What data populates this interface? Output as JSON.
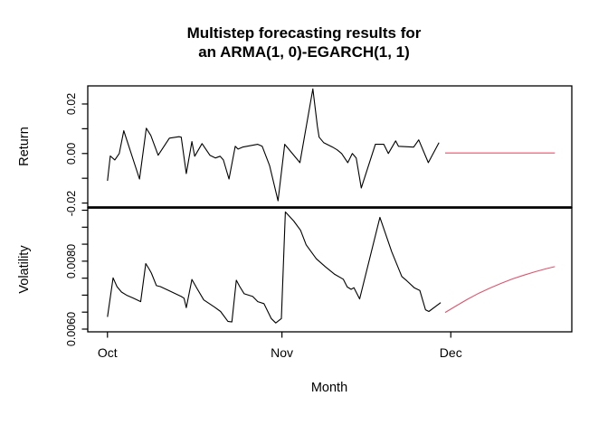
{
  "title": {
    "line1": "Multistep forecasting results for",
    "line2": "an ARMA(1, 0)-EGARCH(1, 1)"
  },
  "x_axis": {
    "label": "Month",
    "ticks": [
      {
        "x": 0,
        "label": "Oct"
      },
      {
        "x": 31,
        "label": "Nov"
      },
      {
        "x": 61,
        "label": "Dec"
      }
    ]
  },
  "colors": {
    "observed": "#000000",
    "forecast": "#DF536B",
    "axis": "#000000",
    "background": "#ffffff"
  },
  "chart_data": [
    {
      "type": "line",
      "panel": "return",
      "ylabel": "Return",
      "xlabel": "Month",
      "x_unit": "days since Oct 1",
      "xlim": [
        -3.5,
        82.5
      ],
      "ylim": [
        -0.0218,
        0.0273
      ],
      "grid": false,
      "legend": "none",
      "yticks": [
        {
          "value": 0.02,
          "label": "0.02"
        },
        {
          "value": 0.01,
          "label": ""
        },
        {
          "value": 0.0,
          "label": "0.00"
        },
        {
          "value": -0.01,
          "label": ""
        },
        {
          "value": -0.02,
          "label": "-0.02"
        }
      ],
      "series": [
        {
          "name": "observed-return",
          "color_key": "observed",
          "points": [
            [
              0,
              -0.011
            ],
            [
              0.5,
              -0.001
            ],
            [
              1.3,
              -0.0026
            ],
            [
              2.1,
              0.0
            ],
            [
              2.9,
              0.0092
            ],
            [
              5.7,
              -0.0103
            ],
            [
              6.9,
              0.0102
            ],
            [
              7.7,
              0.0073
            ],
            [
              9.0,
              -0.0007
            ],
            [
              11.0,
              0.0062
            ],
            [
              12.7,
              0.0068
            ],
            [
              13.1,
              0.0066
            ],
            [
              14.0,
              -0.0081
            ],
            [
              15.0,
              0.0048
            ],
            [
              15.5,
              -0.0011
            ],
            [
              16.8,
              0.004
            ],
            [
              18.2,
              -0.0007
            ],
            [
              19.2,
              -0.0018
            ],
            [
              20.0,
              -0.0011
            ],
            [
              20.6,
              -0.0026
            ],
            [
              21.6,
              -0.0103
            ],
            [
              22.7,
              0.0029
            ],
            [
              23.2,
              0.0018
            ],
            [
              24.0,
              0.0026
            ],
            [
              26.7,
              0.0037
            ],
            [
              27.5,
              0.0029
            ],
            [
              28.8,
              -0.0048
            ],
            [
              30.3,
              -0.0191
            ],
            [
              31.5,
              0.0037
            ],
            [
              34.2,
              -0.0037
            ],
            [
              36.5,
              0.0261
            ],
            [
              37.3,
              0.011
            ],
            [
              37.6,
              0.0066
            ],
            [
              38.4,
              0.0044
            ],
            [
              40.0,
              0.0026
            ],
            [
              40.8,
              0.0015
            ],
            [
              41.6,
              0.0
            ],
            [
              42.7,
              -0.0037
            ],
            [
              43.5,
              0.0
            ],
            [
              44.2,
              -0.0018
            ],
            [
              45.1,
              -0.0139
            ],
            [
              47.6,
              0.0037
            ],
            [
              49.1,
              0.0037
            ],
            [
              49.9,
              0.0
            ],
            [
              51.2,
              0.0051
            ],
            [
              51.7,
              0.0029
            ],
            [
              54.4,
              0.0026
            ],
            [
              55.3,
              0.0055
            ],
            [
              57.0,
              -0.0037
            ],
            [
              58.9,
              0.0044
            ]
          ]
        },
        {
          "name": "forecast-return",
          "color_key": "forecast",
          "points": [
            [
              60,
              0.0002
            ],
            [
              79.5,
              0.0002
            ]
          ]
        }
      ]
    },
    {
      "type": "line",
      "panel": "volatility",
      "ylabel": "Volatility",
      "xlabel": "Month",
      "x_unit": "days since Oct 1",
      "xlim": [
        -3.5,
        82.5
      ],
      "ylim": [
        0.00592,
        0.00958
      ],
      "grid": false,
      "legend": "none",
      "yticks": [
        {
          "value": 0.0095,
          "label": ""
        },
        {
          "value": 0.009,
          "label": ""
        },
        {
          "value": 0.0085,
          "label": ""
        },
        {
          "value": 0.008,
          "label": "0.0080"
        },
        {
          "value": 0.0075,
          "label": ""
        },
        {
          "value": 0.007,
          "label": ""
        },
        {
          "value": 0.0065,
          "label": ""
        },
        {
          "value": 0.006,
          "label": "0.0060"
        }
      ],
      "series": [
        {
          "name": "observed-volatility",
          "color_key": "observed",
          "points": [
            [
              0,
              0.00636
            ],
            [
              1,
              0.00751
            ],
            [
              1.7,
              0.00725
            ],
            [
              2.5,
              0.00709
            ],
            [
              3.5,
              0.00699
            ],
            [
              4.6,
              0.00691
            ],
            [
              5.9,
              0.00681
            ],
            [
              6.8,
              0.00793
            ],
            [
              7.4,
              0.00777
            ],
            [
              7.8,
              0.00765
            ],
            [
              8.7,
              0.00728
            ],
            [
              9.4,
              0.00725
            ],
            [
              10.7,
              0.00715
            ],
            [
              12.1,
              0.00704
            ],
            [
              13.1,
              0.00696
            ],
            [
              13.6,
              0.00691
            ],
            [
              14.0,
              0.00663
            ],
            [
              15.0,
              0.00746
            ],
            [
              16.0,
              0.00717
            ],
            [
              17.1,
              0.00686
            ],
            [
              19.0,
              0.00665
            ],
            [
              20.1,
              0.00652
            ],
            [
              21.4,
              0.00623
            ],
            [
              22.1,
              0.00621
            ],
            [
              22.9,
              0.00744
            ],
            [
              23.5,
              0.00725
            ],
            [
              24.3,
              0.00704
            ],
            [
              25.8,
              0.00696
            ],
            [
              26.7,
              0.00681
            ],
            [
              27.8,
              0.00675
            ],
            [
              29.1,
              0.00631
            ],
            [
              29.9,
              0.00618
            ],
            [
              30.9,
              0.00631
            ],
            [
              31.6,
              0.00945
            ],
            [
              33.1,
              0.00918
            ],
            [
              34.3,
              0.00891
            ],
            [
              35.3,
              0.00848
            ],
            [
              37.1,
              0.00807
            ],
            [
              38.7,
              0.00784
            ],
            [
              40.3,
              0.00762
            ],
            [
              41.9,
              0.00747
            ],
            [
              42.6,
              0.00724
            ],
            [
              43.3,
              0.00717
            ],
            [
              43.8,
              0.00722
            ],
            [
              44.8,
              0.00689
            ],
            [
              48.4,
              0.00929
            ],
            [
              50.5,
              0.00828
            ],
            [
              52.3,
              0.00755
            ],
            [
              53.2,
              0.00742
            ],
            [
              54.5,
              0.00722
            ],
            [
              55.5,
              0.00714
            ],
            [
              56.5,
              0.00657
            ],
            [
              57.1,
              0.00652
            ],
            [
              59.2,
              0.00678
            ]
          ]
        },
        {
          "name": "forecast-volatility",
          "color_key": "forecast",
          "points": [
            [
              60,
              0.00649
            ],
            [
              62,
              0.00669
            ],
            [
              64,
              0.00688
            ],
            [
              66,
              0.00706
            ],
            [
              68,
              0.00721
            ],
            [
              70,
              0.00735
            ],
            [
              72,
              0.00748
            ],
            [
              74,
              0.00759
            ],
            [
              76,
              0.00769
            ],
            [
              78,
              0.00778
            ],
            [
              79.5,
              0.00784
            ]
          ]
        }
      ]
    }
  ]
}
